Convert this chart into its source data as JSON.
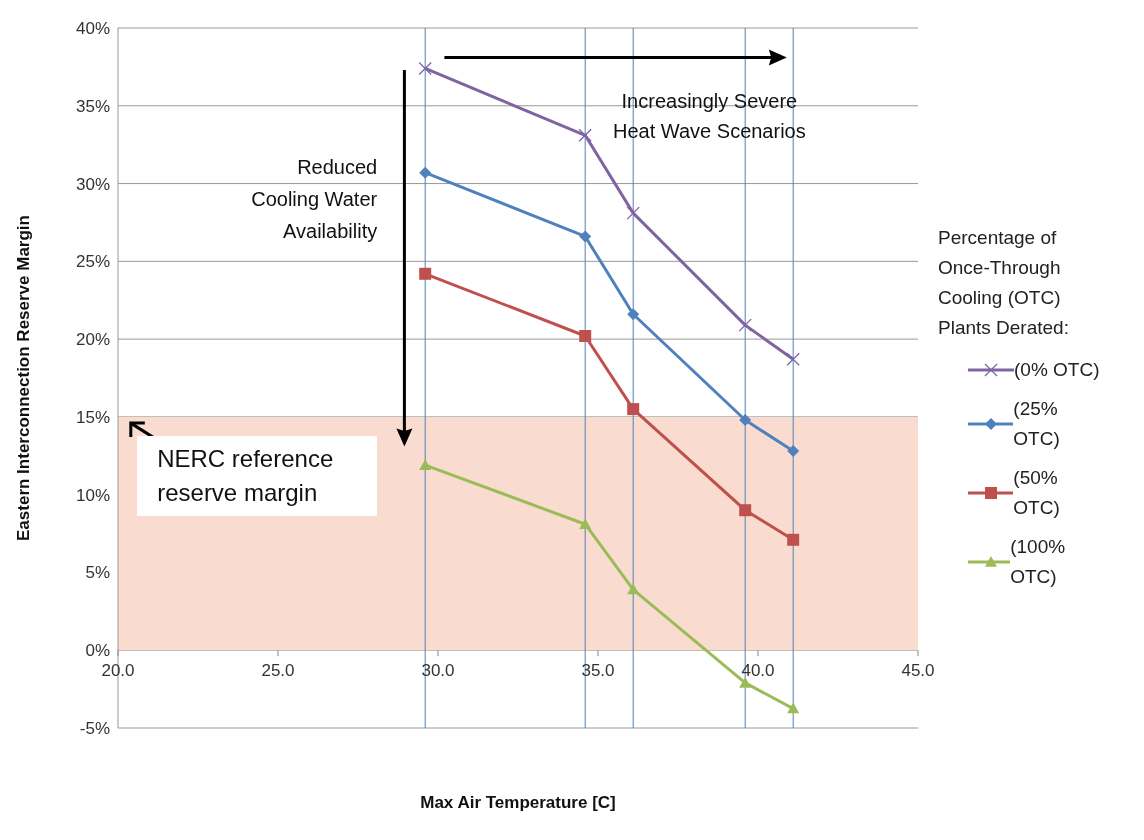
{
  "chart_data": {
    "type": "line",
    "xlabel": "Max Air Temperature [C]",
    "ylabel": "Eastern Interconnection Reserve Margin",
    "legend_title": "Percentage of Once-Through Cooling (OTC) Plants Derated:",
    "x": [
      29.6,
      34.6,
      36.1,
      39.6,
      41.1
    ],
    "series": [
      {
        "name": "(0% OTC)",
        "color": "#8064a2",
        "marker": "cross",
        "values": [
          37.4,
          33.1,
          28.1,
          20.9,
          18.7
        ]
      },
      {
        "name": "(25% OTC)",
        "color": "#4f81bd",
        "marker": "diamond",
        "values": [
          30.7,
          26.6,
          21.6,
          14.8,
          12.8
        ]
      },
      {
        "name": "(50% OTC)",
        "color": "#c0504d",
        "marker": "square",
        "values": [
          24.2,
          20.2,
          15.5,
          9.0,
          7.1
        ]
      },
      {
        "name": "(100% OTC)",
        "color": "#9bbb59",
        "marker": "triangle",
        "values": [
          11.9,
          8.1,
          3.9,
          -2.1,
          -3.75
        ]
      }
    ],
    "xlim": [
      20,
      45
    ],
    "xticks": [
      {
        "value": 20,
        "label": "20.0"
      },
      {
        "value": 25,
        "label": "25.0"
      },
      {
        "value": 30,
        "label": "30.0"
      },
      {
        "value": 35,
        "label": "35.0"
      },
      {
        "value": 40,
        "label": "40.0"
      },
      {
        "value": 45,
        "label": "45.0"
      }
    ],
    "ylim": [
      -5,
      40
    ],
    "yticks": [
      {
        "value": -5,
        "label": "-5%"
      },
      {
        "value": 0,
        "label": "0%"
      },
      {
        "value": 5,
        "label": "5%"
      },
      {
        "value": 10,
        "label": "10%"
      },
      {
        "value": 15,
        "label": "15%"
      },
      {
        "value": 20,
        "label": "20%"
      },
      {
        "value": 25,
        "label": "25%"
      },
      {
        "value": 30,
        "label": "30%"
      },
      {
        "value": 35,
        "label": "35%"
      },
      {
        "value": 40,
        "label": "40%"
      }
    ],
    "grid": "y",
    "legend": "right",
    "line_style": "solid",
    "ref_lines": [
      {
        "axis": "x",
        "value": 29.6,
        "color": "#4f81bd"
      },
      {
        "axis": "x",
        "value": 34.6,
        "color": "#4f81bd"
      },
      {
        "axis": "x",
        "value": 36.1,
        "color": "#4f81bd"
      },
      {
        "axis": "x",
        "value": 39.6,
        "color": "#4f81bd"
      },
      {
        "axis": "x",
        "value": 41.1,
        "color": "#4f81bd"
      }
    ],
    "bands": [
      {
        "axis": "y",
        "from": 0,
        "to": 15,
        "label": "NERC reference reserve margin",
        "color": "#f9dccf"
      }
    ],
    "annotations": [
      "Increasingly Severe Heat Wave Scenarios",
      "Reduced Cooling Water Availability"
    ]
  }
}
